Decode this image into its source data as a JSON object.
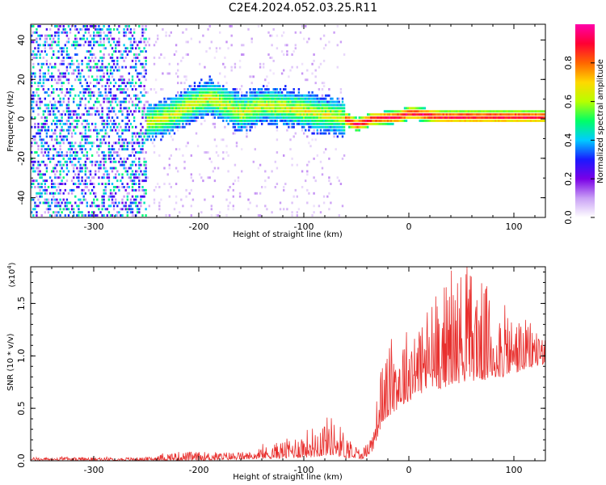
{
  "title": "C2E4.2024.052.03.25.R11",
  "chart_data": [
    {
      "type": "heatmap",
      "xlabel": "Height of straight line (km)",
      "ylabel": "Frequency (Hz)",
      "xlim": [
        -360,
        130
      ],
      "ylim": [
        -50,
        48
      ],
      "x_ticks": [
        -300,
        -200,
        -100,
        0,
        100
      ],
      "y_ticks": [
        -40,
        -20,
        0,
        20,
        40
      ],
      "colorbar": {
        "label": "Normalized spectral amplitude",
        "range": [
          0,
          1
        ],
        "ticks": [
          "0.0",
          "0.2",
          "0.4",
          "0.6",
          "0.8"
        ],
        "colors": [
          "#ffffff",
          "#c9a0f5",
          "#7a00e6",
          "#1a1aff",
          "#00ccff",
          "#00ff66",
          "#b7ff00",
          "#ffd800",
          "#ff6600",
          "#ff0033",
          "#ff00aa"
        ]
      },
      "ridge": [
        {
          "x": -250,
          "y": -3
        },
        {
          "x": -230,
          "y": 0
        },
        {
          "x": -210,
          "y": 6
        },
        {
          "x": -190,
          "y": 10
        },
        {
          "x": -175,
          "y": 6
        },
        {
          "x": -160,
          "y": 2
        },
        {
          "x": -140,
          "y": 6
        },
        {
          "x": -120,
          "y": 5
        },
        {
          "x": -100,
          "y": 3
        },
        {
          "x": -80,
          "y": 1
        },
        {
          "x": -65,
          "y": 0
        },
        {
          "x": -50,
          "y": -4
        },
        {
          "x": -35,
          "y": -1
        },
        {
          "x": -10,
          "y": 0
        },
        {
          "x": 0,
          "y": 2
        },
        {
          "x": 30,
          "y": 0
        },
        {
          "x": 60,
          "y": 0
        },
        {
          "x": 130,
          "y": 0
        }
      ]
    },
    {
      "type": "line",
      "xlabel": "Height of straight line (km)",
      "ylabel": "SNR (10 * v/v)",
      "y_multiplier": "(x10",
      "y_multiplier_exp": "4",
      "y_multiplier_close": ")",
      "xlim": [
        -360,
        130
      ],
      "ylim": [
        0,
        1.85
      ],
      "x_ticks": [
        -300,
        -200,
        -100,
        0,
        100
      ],
      "y_ticks": [
        "0.0",
        "0.5",
        "1.0",
        "1.5"
      ],
      "color": "#e8302e",
      "envelope": [
        {
          "x": -360,
          "base": 0.01,
          "amp": 0.02
        },
        {
          "x": -250,
          "base": 0.01,
          "amp": 0.02
        },
        {
          "x": -225,
          "base": 0.02,
          "amp": 0.06
        },
        {
          "x": -200,
          "base": 0.02,
          "amp": 0.06
        },
        {
          "x": -150,
          "base": 0.03,
          "amp": 0.05
        },
        {
          "x": -130,
          "base": 0.05,
          "amp": 0.1
        },
        {
          "x": -110,
          "base": 0.07,
          "amp": 0.15
        },
        {
          "x": -90,
          "base": 0.1,
          "amp": 0.22
        },
        {
          "x": -75,
          "base": 0.14,
          "amp": 0.28
        },
        {
          "x": -60,
          "base": 0.08,
          "amp": 0.18
        },
        {
          "x": -45,
          "base": 0.03,
          "amp": 0.06
        },
        {
          "x": -35,
          "base": 0.12,
          "amp": 0.15
        },
        {
          "x": -25,
          "base": 0.5,
          "amp": 0.45
        },
        {
          "x": -10,
          "base": 0.65,
          "amp": 0.5
        },
        {
          "x": 10,
          "base": 0.8,
          "amp": 0.55
        },
        {
          "x": 30,
          "base": 0.9,
          "amp": 0.7
        },
        {
          "x": 55,
          "base": 1.0,
          "amp": 0.8
        },
        {
          "x": 80,
          "base": 0.95,
          "amp": 0.6
        },
        {
          "x": 100,
          "base": 0.95,
          "amp": 0.4
        },
        {
          "x": 130,
          "base": 1.0,
          "amp": 0.25
        }
      ]
    }
  ]
}
